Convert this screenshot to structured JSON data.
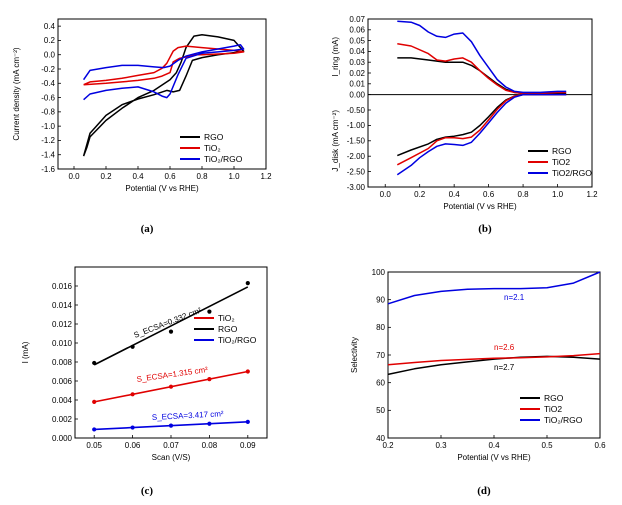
{
  "chart_data": [
    {
      "type": "line",
      "panel_label": "(a)",
      "xlabel": "Potential (V vs RHE)",
      "ylabel": "Current density (mA cm⁻²)",
      "xlim": [
        -0.1,
        1.2
      ],
      "ylim": [
        -1.6,
        0.5
      ],
      "xticks": [
        "0.0",
        "0.2",
        "0.4",
        "0.6",
        "0.8",
        "1.0",
        "1.2"
      ],
      "xtick_values": [
        0,
        0.2,
        0.4,
        0.6,
        0.8,
        1.0,
        1.2
      ],
      "yticks": [
        "0.4",
        "0.2",
        "0.0",
        "-0.2",
        "-0.4",
        "-0.6",
        "-0.8",
        "-1.0",
        "-1.2",
        "-1.4",
        "-1.6"
      ],
      "ytick_values": [
        0.4,
        0.2,
        0,
        -0.2,
        -0.4,
        -0.6,
        -0.8,
        -1.0,
        -1.2,
        -1.4,
        -1.6
      ],
      "legend_position": "bottom-right",
      "series": [
        {
          "name": "RGO",
          "color": "#000000",
          "x": [
            0.06,
            0.1,
            0.2,
            0.3,
            0.4,
            0.5,
            0.58,
            0.62,
            0.66,
            0.7,
            0.74,
            0.8,
            0.9,
            1.0,
            1.06,
            1.04,
            1.0,
            0.9,
            0.8,
            0.75,
            0.7,
            0.67,
            0.64,
            0.6,
            0.5,
            0.4,
            0.3,
            0.2,
            0.1,
            0.08,
            0.06
          ],
          "y": [
            -1.42,
            -1.1,
            -0.85,
            -0.7,
            -0.62,
            -0.56,
            -0.5,
            -0.52,
            -0.5,
            -0.3,
            -0.08,
            -0.04,
            0.0,
            0.03,
            0.05,
            0.1,
            0.2,
            0.25,
            0.28,
            0.26,
            0.1,
            -0.1,
            -0.25,
            -0.35,
            -0.5,
            -0.6,
            -0.75,
            -0.92,
            -1.15,
            -1.3,
            -1.42
          ]
        },
        {
          "name": "TiO₂",
          "color": "#e00000",
          "x": [
            0.06,
            0.2,
            0.3,
            0.4,
            0.5,
            0.55,
            0.6,
            0.62,
            0.66,
            0.7,
            0.75,
            0.8,
            0.9,
            1.0,
            1.06,
            1.04,
            1.0,
            0.9,
            0.8,
            0.7,
            0.65,
            0.62,
            0.58,
            0.55,
            0.5,
            0.4,
            0.3,
            0.2,
            0.1,
            0.06
          ],
          "y": [
            -0.42,
            -0.4,
            -0.38,
            -0.36,
            -0.33,
            -0.3,
            -0.25,
            -0.1,
            -0.05,
            -0.03,
            0.0,
            0.0,
            0.01,
            0.02,
            0.04,
            0.05,
            0.06,
            0.08,
            0.1,
            0.12,
            0.1,
            0.05,
            -0.12,
            -0.19,
            -0.25,
            -0.29,
            -0.33,
            -0.36,
            -0.38,
            -0.42
          ]
        },
        {
          "name": "TiO₂/RGO",
          "color": "#0000e0",
          "x": [
            0.06,
            0.1,
            0.2,
            0.3,
            0.4,
            0.5,
            0.55,
            0.58,
            0.6,
            0.65,
            0.7,
            0.8,
            0.9,
            1.0,
            1.06,
            1.04,
            1.0,
            0.9,
            0.8,
            0.7,
            0.65,
            0.6,
            0.56,
            0.5,
            0.4,
            0.3,
            0.2,
            0.1,
            0.06
          ],
          "y": [
            -0.63,
            -0.55,
            -0.5,
            -0.47,
            -0.45,
            -0.52,
            -0.58,
            -0.6,
            -0.55,
            -0.28,
            -0.05,
            0.02,
            0.04,
            0.06,
            0.08,
            0.14,
            0.12,
            0.08,
            0.04,
            -0.02,
            -0.08,
            -0.16,
            -0.18,
            -0.17,
            -0.15,
            -0.15,
            -0.18,
            -0.22,
            -0.35
          ]
        }
      ]
    },
    {
      "type": "line",
      "panel_label": "(b)",
      "xlabel": "Potential (V vs RHE)",
      "ylabel_top": "I_ring (mA)",
      "ylabel_bottom": "J_disk (mA cm⁻²)",
      "xlim": [
        -0.1,
        1.2
      ],
      "ylim": [
        -3.0,
        0.07
      ],
      "xticks": [
        "0.0",
        "0.2",
        "0.4",
        "0.6",
        "0.8",
        "1.0",
        "1.2"
      ],
      "xtick_values": [
        0,
        0.2,
        0.4,
        0.6,
        0.8,
        1.0,
        1.2
      ],
      "yticks": [
        "0.07",
        "0.06",
        "0.05",
        "0.04",
        "0.03",
        "0.02",
        "0.01",
        "0.00",
        "-0.50",
        "-1.00",
        "-1.50",
        "-2.00",
        "-2.50",
        "-3.00"
      ],
      "ytick_values": [
        0.07,
        0.06,
        0.05,
        0.04,
        0.03,
        0.02,
        0.01,
        0.0,
        -0.5,
        -1.0,
        -1.5,
        -2.0,
        -2.5,
        -3.0
      ],
      "legend_position": "bottom-right",
      "series": [
        {
          "name": "RGO",
          "color": "#000000",
          "part": "ring",
          "x": [
            0.07,
            0.15,
            0.25,
            0.3,
            0.35,
            0.4,
            0.45,
            0.5,
            0.55,
            0.6,
            0.65,
            0.7,
            0.75,
            0.8,
            0.9,
            1.0,
            1.05
          ],
          "y": [
            0.034,
            0.034,
            0.032,
            0.031,
            0.03,
            0.03,
            0.03,
            0.027,
            0.022,
            0.016,
            0.01,
            0.005,
            0.002,
            0.001,
            0.001,
            0.001,
            0.001
          ]
        },
        {
          "name": "TiO2",
          "color": "#e00000",
          "part": "ring",
          "x": [
            0.07,
            0.15,
            0.25,
            0.3,
            0.35,
            0.4,
            0.45,
            0.5,
            0.55,
            0.6,
            0.65,
            0.7,
            0.75,
            0.8,
            0.9,
            1.0,
            1.05
          ],
          "y": [
            0.047,
            0.045,
            0.038,
            0.032,
            0.031,
            0.033,
            0.034,
            0.03,
            0.022,
            0.015,
            0.009,
            0.004,
            0.002,
            0.001,
            0.001,
            0.002,
            0.002
          ]
        },
        {
          "name": "TiO2/RGO",
          "color": "#0000e0",
          "part": "ring",
          "x": [
            0.07,
            0.15,
            0.2,
            0.25,
            0.3,
            0.35,
            0.4,
            0.45,
            0.5,
            0.55,
            0.6,
            0.65,
            0.7,
            0.75,
            0.8,
            0.9,
            1.0,
            1.05
          ],
          "y": [
            0.068,
            0.067,
            0.064,
            0.058,
            0.054,
            0.053,
            0.056,
            0.057,
            0.049,
            0.036,
            0.025,
            0.014,
            0.007,
            0.003,
            0.002,
            0.002,
            0.003,
            0.003
          ]
        },
        {
          "name": "RGO",
          "color": "#000000",
          "part": "disk",
          "x": [
            0.07,
            0.15,
            0.25,
            0.3,
            0.35,
            0.4,
            0.45,
            0.5,
            0.55,
            0.6,
            0.65,
            0.7,
            0.75,
            0.8,
            0.9,
            1.0,
            1.05
          ],
          "y": [
            -1.98,
            -1.8,
            -1.6,
            -1.45,
            -1.38,
            -1.35,
            -1.3,
            -1.22,
            -1.0,
            -0.72,
            -0.42,
            -0.18,
            -0.05,
            0.0,
            0.0,
            0.0,
            0.0
          ]
        },
        {
          "name": "TiO2",
          "color": "#e00000",
          "part": "disk",
          "x": [
            0.07,
            0.15,
            0.25,
            0.3,
            0.35,
            0.4,
            0.45,
            0.5,
            0.55,
            0.6,
            0.65,
            0.7,
            0.75,
            0.8,
            0.9,
            1.0,
            1.05
          ],
          "y": [
            -2.28,
            -2.05,
            -1.75,
            -1.5,
            -1.4,
            -1.4,
            -1.43,
            -1.38,
            -1.15,
            -0.82,
            -0.48,
            -0.2,
            -0.05,
            0.0,
            0.0,
            0.0,
            0.0
          ]
        },
        {
          "name": "TiO2/RGO",
          "color": "#0000e0",
          "part": "disk",
          "x": [
            0.07,
            0.15,
            0.2,
            0.25,
            0.3,
            0.35,
            0.4,
            0.45,
            0.5,
            0.55,
            0.6,
            0.65,
            0.7,
            0.75,
            0.8,
            0.9,
            1.0,
            1.05
          ],
          "y": [
            -2.6,
            -2.3,
            -2.05,
            -1.85,
            -1.68,
            -1.6,
            -1.62,
            -1.65,
            -1.55,
            -1.25,
            -0.92,
            -0.58,
            -0.28,
            -0.08,
            0.0,
            0.0,
            0.0,
            0.0
          ]
        }
      ]
    },
    {
      "type": "scatter",
      "panel_label": "(c)",
      "xlabel": "Scan (V/S)",
      "ylabel": "I (mA)",
      "xlim": [
        0.045,
        0.095
      ],
      "ylim": [
        0,
        0.018
      ],
      "xticks": [
        "0.05",
        "0.06",
        "0.07",
        "0.08",
        "0.09"
      ],
      "xtick_values": [
        0.05,
        0.06,
        0.07,
        0.08,
        0.09
      ],
      "yticks": [
        "0.000",
        "0.002",
        "0.004",
        "0.006",
        "0.008",
        "0.010",
        "0.012",
        "0.014",
        "0.016"
      ],
      "ytick_values": [
        0,
        0.002,
        0.004,
        0.006,
        0.008,
        0.01,
        0.012,
        0.014,
        0.016
      ],
      "legend_position": "top-right",
      "series": [
        {
          "name": "RGO",
          "color": "#000000",
          "x": [
            0.05,
            0.06,
            0.07,
            0.08,
            0.09
          ],
          "y": [
            0.0079,
            0.0096,
            0.0112,
            0.0133,
            0.0163
          ],
          "fit": [
            0.0077,
            0.0159
          ],
          "annotation": "S_ECSA=0.332 cm²"
        },
        {
          "name": "TiO₂",
          "color": "#e00000",
          "x": [
            0.05,
            0.06,
            0.07,
            0.08,
            0.09
          ],
          "y": [
            0.0038,
            0.0046,
            0.0054,
            0.0062,
            0.007
          ],
          "fit": [
            0.0038,
            0.007
          ],
          "annotation": "S_ECSA=1.315 cm²"
        },
        {
          "name": "TiO₂/RGO",
          "color": "#0000e0",
          "x": [
            0.05,
            0.06,
            0.07,
            0.08,
            0.09
          ],
          "y": [
            0.0009,
            0.0011,
            0.0013,
            0.0015,
            0.0017
          ],
          "fit": [
            0.0009,
            0.0017
          ],
          "annotation": "S_ECSA=3.417 cm²"
        }
      ]
    },
    {
      "type": "line",
      "panel_label": "(d)",
      "xlabel": "Potential (V vs RHE)",
      "ylabel": "Selectivity",
      "xlim": [
        0.2,
        0.6
      ],
      "ylim": [
        40,
        100
      ],
      "xticks": [
        "0.2",
        "0.3",
        "0.4",
        "0.5",
        "0.6"
      ],
      "xtick_values": [
        0.2,
        0.3,
        0.4,
        0.5,
        0.6
      ],
      "yticks": [
        "40",
        "50",
        "60",
        "70",
        "80",
        "90",
        "100"
      ],
      "ytick_values": [
        40,
        50,
        60,
        70,
        80,
        90,
        100
      ],
      "legend_position": "bottom-right",
      "series": [
        {
          "name": "RGO",
          "color": "#000000",
          "x": [
            0.2,
            0.25,
            0.3,
            0.35,
            0.4,
            0.45,
            0.5,
            0.55,
            0.6
          ],
          "y": [
            63.0,
            65.0,
            66.5,
            67.5,
            68.5,
            69.2,
            69.5,
            69.2,
            68.5
          ],
          "annotation": "n=2.7"
        },
        {
          "name": "TiO2",
          "color": "#e00000",
          "x": [
            0.2,
            0.25,
            0.3,
            0.35,
            0.4,
            0.45,
            0.5,
            0.55,
            0.6
          ],
          "y": [
            66.5,
            67.3,
            68.0,
            68.4,
            68.8,
            69.0,
            69.3,
            69.8,
            70.5
          ],
          "annotation": "n=2.6"
        },
        {
          "name": "TiO₂/RGO",
          "color": "#0000e0",
          "x": [
            0.2,
            0.25,
            0.3,
            0.35,
            0.4,
            0.45,
            0.5,
            0.55,
            0.6
          ],
          "y": [
            88.5,
            91.5,
            93.0,
            93.8,
            94.0,
            94.0,
            94.3,
            96.0,
            100.0
          ],
          "annotation": "n=2.1"
        }
      ]
    }
  ]
}
